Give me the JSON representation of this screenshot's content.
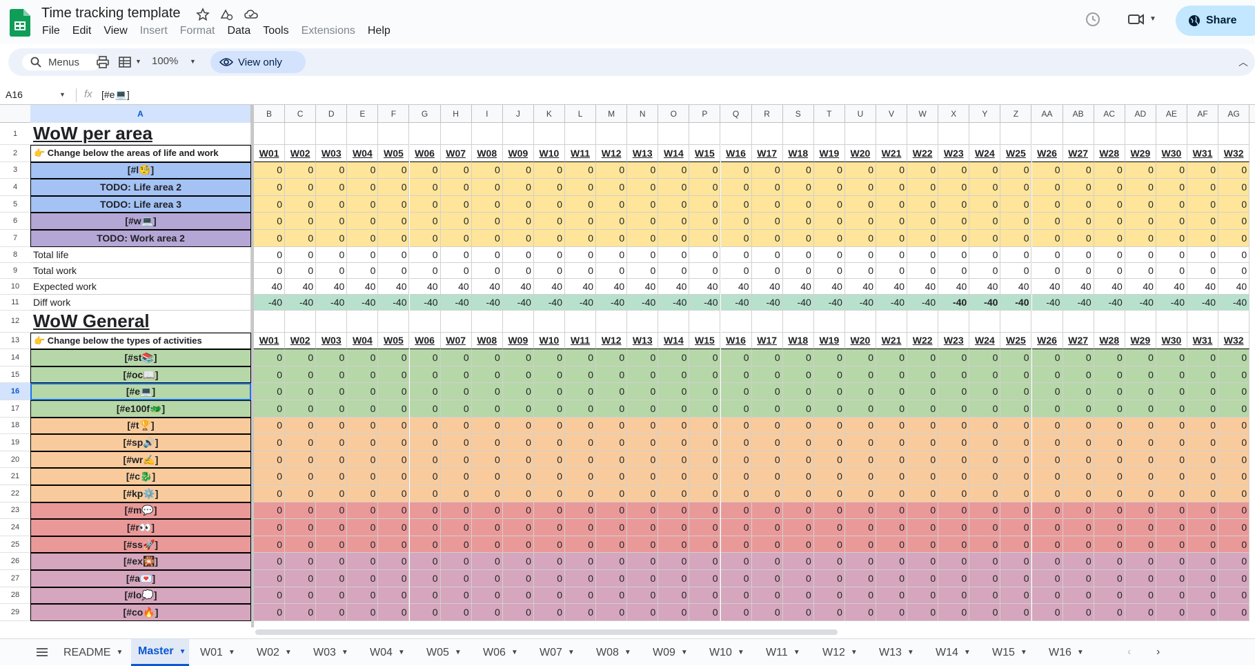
{
  "app": {
    "title": "Time tracking template",
    "icons": [
      "star-icon",
      "move-to-drive-icon",
      "cloud-status-icon"
    ]
  },
  "menu": [
    "File",
    "Edit",
    "View",
    "Insert",
    "Format",
    "Data",
    "Tools",
    "Extensions",
    "Help"
  ],
  "menu_disabled": [
    "Insert",
    "Format",
    "Extensions"
  ],
  "share_label": "Share",
  "toolbar": {
    "search_label": "Menus",
    "zoom": "100%",
    "view_only": "View only"
  },
  "formula_bar": {
    "namebox": "A16",
    "fx": "fx",
    "content": "[#e💻]"
  },
  "columns": [
    "A",
    "B",
    "C",
    "D",
    "E",
    "F",
    "G",
    "H",
    "I",
    "J",
    "K",
    "L",
    "M",
    "N",
    "O",
    "P",
    "Q",
    "R",
    "S",
    "T",
    "U",
    "V",
    "W",
    "X",
    "Y",
    "Z",
    "AA",
    "AB",
    "AC",
    "AD",
    "AE",
    "AF",
    "AG"
  ],
  "selected_col": "A",
  "selected_row": 16,
  "weeks": [
    "W01",
    "W02",
    "W03",
    "W04",
    "W05",
    "W06",
    "W07",
    "W08",
    "W09",
    "W10",
    "W11",
    "W12",
    "W13",
    "W14",
    "W15",
    "W16",
    "W17",
    "W18",
    "W19",
    "W20",
    "W21",
    "W22",
    "W23",
    "W24",
    "W25",
    "W26",
    "W27",
    "W28",
    "W29",
    "W30",
    "W31",
    "W32"
  ],
  "colors": {
    "blue": "#a4c2f4",
    "purple": "#b4a7d6",
    "yellow": "#ffe599",
    "green": "#b6d7a8",
    "orange": "#f9cb9c",
    "red": "#ea9999",
    "pink": "#d5a6bd",
    "teal": "#b7e1cd"
  },
  "rows": [
    {
      "n": 1,
      "type": "title",
      "label": "WoW per area"
    },
    {
      "n": 2,
      "type": "header",
      "label": "👉  Change below the areas of life and work"
    },
    {
      "n": 3,
      "type": "data",
      "label": "[#l🧐]",
      "color": "blue",
      "val": "0",
      "fill": "yellow"
    },
    {
      "n": 4,
      "type": "data",
      "label": "TODO: Life area 2",
      "color": "blue",
      "val": "0",
      "fill": "yellow"
    },
    {
      "n": 5,
      "type": "data",
      "label": "TODO: Life area 3",
      "color": "blue",
      "val": "0",
      "fill": "yellow"
    },
    {
      "n": 6,
      "type": "data",
      "label": "[#w💻]",
      "color": "purple",
      "val": "0",
      "fill": "yellow"
    },
    {
      "n": 7,
      "type": "data",
      "label": "TODO: Work area 2",
      "color": "purple",
      "val": "0",
      "fill": "yellow"
    },
    {
      "n": 8,
      "type": "plainrow",
      "label": "Total life",
      "val": "0"
    },
    {
      "n": 9,
      "type": "plainrow",
      "label": "Total work",
      "val": "0"
    },
    {
      "n": 10,
      "type": "plainrow",
      "label": "Expected work",
      "val": "40"
    },
    {
      "n": 11,
      "type": "plainrow",
      "label": "Diff work",
      "val": "-40",
      "fill": "teal"
    },
    {
      "n": 12,
      "type": "title",
      "label": "WoW General"
    },
    {
      "n": 13,
      "type": "header",
      "label": "👉  Change below the types of activities"
    },
    {
      "n": 14,
      "type": "data",
      "label": "[#st📚]",
      "color": "green",
      "val": "0",
      "fill": "green"
    },
    {
      "n": 15,
      "type": "data",
      "label": "[#oc📖]",
      "color": "green",
      "val": "0",
      "fill": "green"
    },
    {
      "n": 16,
      "type": "data",
      "label": "[#e💻]",
      "color": "green",
      "val": "0",
      "fill": "green"
    },
    {
      "n": 17,
      "type": "data",
      "label": "[#e100f🐲]",
      "color": "green",
      "val": "0",
      "fill": "green"
    },
    {
      "n": 18,
      "type": "data",
      "label": "[#t🏆]",
      "color": "orange",
      "val": "0",
      "fill": "orange"
    },
    {
      "n": 19,
      "type": "data",
      "label": "[#sp🔊]",
      "color": "orange",
      "val": "0",
      "fill": "orange"
    },
    {
      "n": 20,
      "type": "data",
      "label": "[#wr✍️]",
      "color": "orange",
      "val": "0",
      "fill": "orange"
    },
    {
      "n": 21,
      "type": "data",
      "label": "[#c🐉]",
      "color": "orange",
      "val": "0",
      "fill": "orange"
    },
    {
      "n": 22,
      "type": "data",
      "label": "[#kp⚙️]",
      "color": "orange",
      "val": "0",
      "fill": "orange"
    },
    {
      "n": 23,
      "type": "data",
      "label": "[#m💬]",
      "color": "red",
      "val": "0",
      "fill": "red"
    },
    {
      "n": 24,
      "type": "data",
      "label": "[#r👀]",
      "color": "red",
      "val": "0",
      "fill": "red"
    },
    {
      "n": 25,
      "type": "data",
      "label": "[#ss🚀]",
      "color": "red",
      "val": "0",
      "fill": "red"
    },
    {
      "n": 26,
      "type": "data",
      "label": "[#ex🎇]",
      "color": "pink",
      "val": "0",
      "fill": "pink"
    },
    {
      "n": 27,
      "type": "data",
      "label": "[#a💌]",
      "color": "pink",
      "val": "0",
      "fill": "pink"
    },
    {
      "n": 28,
      "type": "data",
      "label": "[#lo💭]",
      "color": "pink",
      "val": "0",
      "fill": "pink"
    },
    {
      "n": 29,
      "type": "data",
      "label": "[#co🔥]",
      "color": "pink",
      "val": "0",
      "fill": "pink"
    }
  ],
  "tabs": [
    "README",
    "Master",
    "W01",
    "W02",
    "W03",
    "W04",
    "W05",
    "W06",
    "W07",
    "W08",
    "W09",
    "W10",
    "W11",
    "W12",
    "W13",
    "W14",
    "W15",
    "W16"
  ],
  "active_tab": "Master"
}
